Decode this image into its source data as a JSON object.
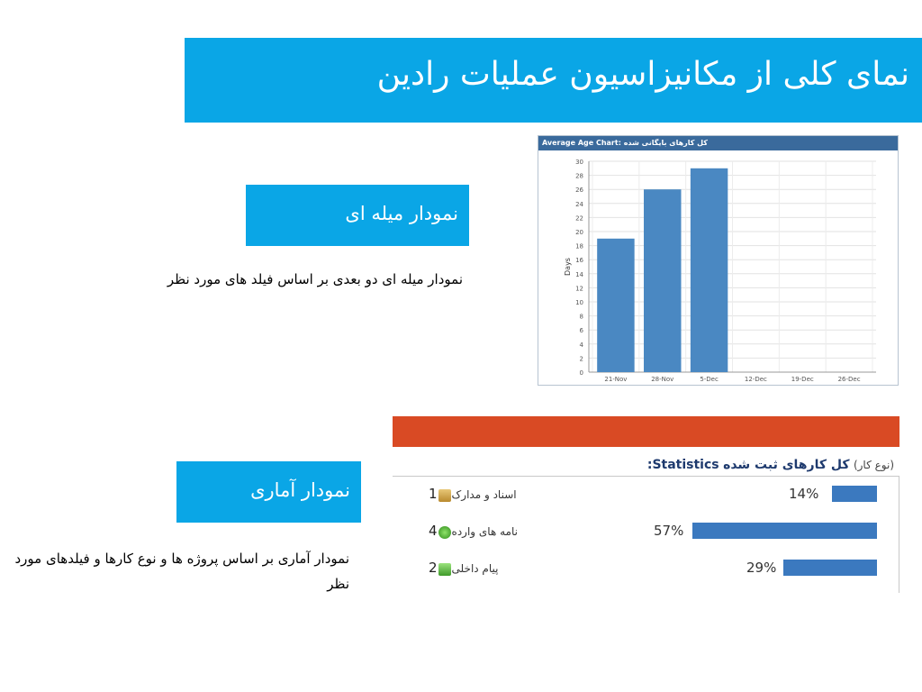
{
  "slide": {
    "title": "نمای کلی از مکانیزاسیون عملیات رادین"
  },
  "bar_section": {
    "label": "نمودار میله ای",
    "description": "نمودار میله ای دو بعدی بر اساس فیلد های مورد نظر"
  },
  "stats_section": {
    "label": "نمودار آماری",
    "description": "نمودار آماری بر اساس پروژه ها و نوع کارها و فیلدهای مورد نظر"
  },
  "chart_data": {
    "type": "bar",
    "title": "Average Age Chart: کل کارهای بایگانی شده",
    "categories": [
      "21-Nov",
      "28-Nov",
      "5-Dec",
      "12-Dec",
      "19-Dec",
      "26-Dec"
    ],
    "values": [
      19,
      26,
      29,
      0,
      0,
      0
    ],
    "xlabel": "",
    "ylabel": "Days",
    "ylim": [
      0,
      30
    ],
    "yticks": [
      0,
      2,
      4,
      6,
      8,
      10,
      12,
      14,
      16,
      18,
      20,
      22,
      24,
      26,
      28,
      30
    ],
    "grid": true,
    "color": "#4a88c2"
  },
  "statistics": {
    "title_en": "Statistics:",
    "title_fa": "کل کارهای ثبت شده",
    "subtitle": "(نوع کار)",
    "header_color": "#d94a24",
    "bar_color": "#3b79bf",
    "rows": [
      {
        "count": "1",
        "label": "اسناد و مدارک",
        "icon": "folder-icon",
        "percent_label": "14%",
        "percent": 14
      },
      {
        "count": "4",
        "label": "نامه های وارده",
        "icon": "globe-mail-icon",
        "percent_label": "57%",
        "percent": 57
      },
      {
        "count": "2",
        "label": "پیام داخلی",
        "icon": "message-icon",
        "percent_label": "29%",
        "percent": 29
      }
    ]
  }
}
